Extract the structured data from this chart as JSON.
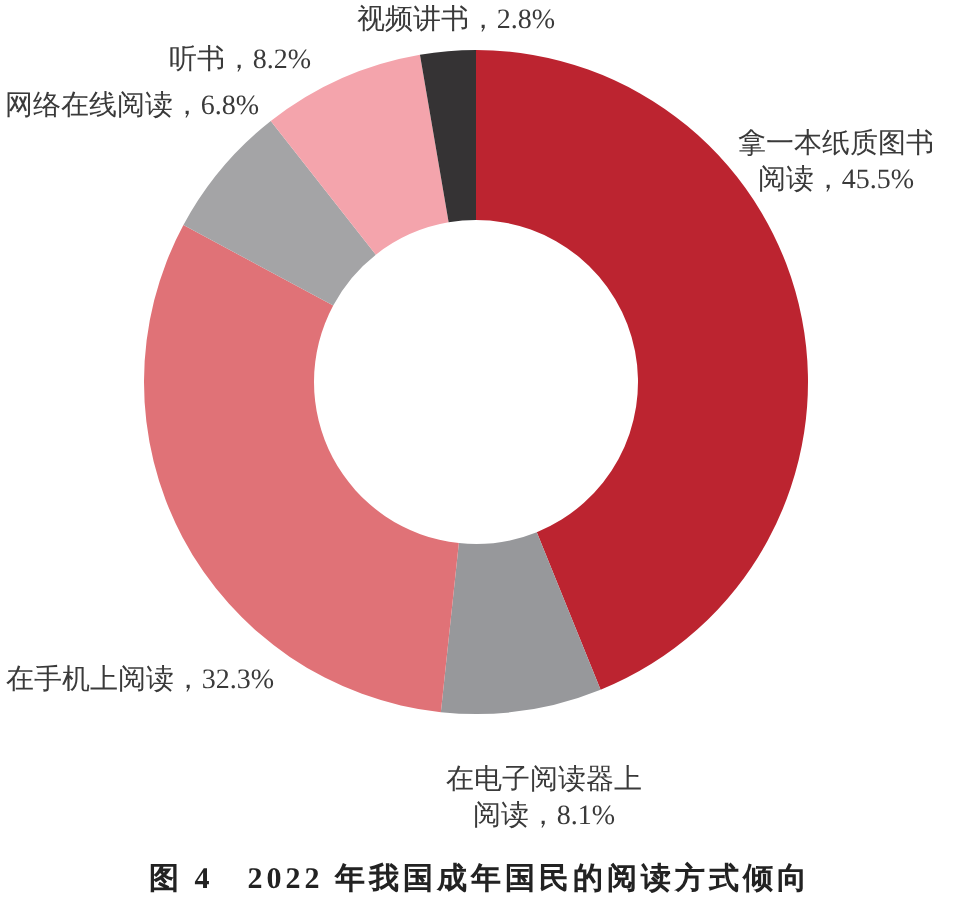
{
  "chart_data": {
    "type": "donut",
    "title": "图 4　2022 年我国成年国民的阅读方式倾向",
    "categories": [
      "拿一本纸质图书阅读",
      "在电子阅读器上阅读",
      "在手机上阅读",
      "网络在线阅读",
      "听书",
      "视频讲书"
    ],
    "values": [
      45.5,
      8.1,
      32.3,
      6.8,
      8.2,
      2.8
    ],
    "colors": [
      "#bc2430",
      "#97989b",
      "#e07277",
      "#a4a4a6",
      "#f4a4ac",
      "#353334"
    ],
    "value_labels": [
      "45.5%",
      "8.1%",
      "32.3%",
      "6.8%",
      "8.2%",
      "2.8%"
    ]
  }
}
